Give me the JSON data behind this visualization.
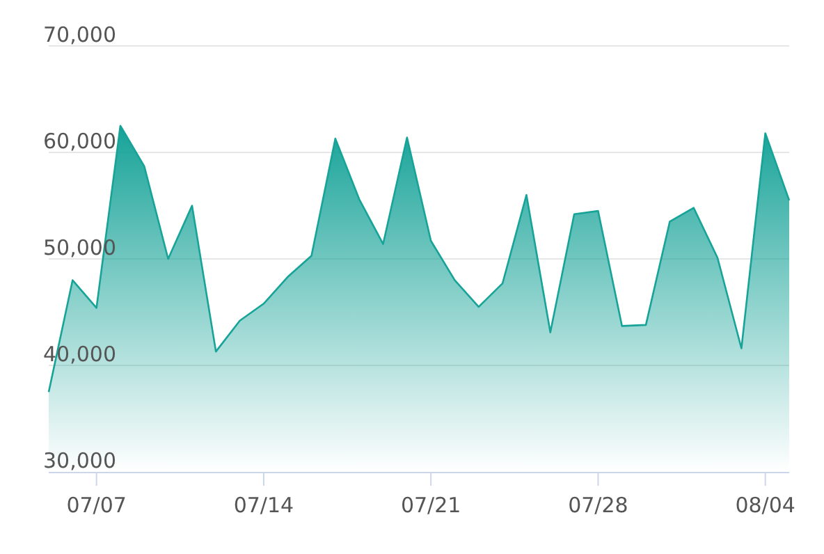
{
  "chart_data": {
    "type": "area",
    "x": [
      "--07-05",
      "--07-06",
      "--07-07",
      "--07-08",
      "--07-09",
      "--07-10",
      "--07-11",
      "--07-12",
      "--07-13",
      "--07-14",
      "--07-15",
      "--07-16",
      "--07-17",
      "--07-18",
      "--07-19",
      "--07-20",
      "--07-21",
      "--07-22",
      "--07-23",
      "--07-24",
      "--07-25",
      "--07-26",
      "--07-27",
      "--07-28",
      "--07-29",
      "--07-30",
      "--07-31",
      "--08-01",
      "--08-02",
      "--08-03",
      "--08-04",
      "--08-05"
    ],
    "series": [
      {
        "color": "#17a398",
        "values": [
          37500,
          48000,
          45400,
          62500,
          58700,
          50000,
          55000,
          41300,
          44200,
          45800,
          48300,
          50300,
          61300,
          55600,
          51400,
          61400,
          51700,
          48000,
          45500,
          47700,
          56000,
          43100,
          54200,
          54500,
          43700,
          43800,
          53500,
          54800,
          50100,
          41600,
          61800,
          55500
        ]
      }
    ],
    "xlim": [
      "--07-05",
      "--08-05"
    ],
    "xticks": [
      {
        "value": "--07-07",
        "label": "07/07"
      },
      {
        "value": "--07-14",
        "label": "07/14"
      },
      {
        "value": "--07-21",
        "label": "07/21"
      },
      {
        "value": "--07-28",
        "label": "07/28"
      },
      {
        "value": "--08-04",
        "label": "08/04"
      }
    ],
    "ylim": [
      30000,
      70000
    ],
    "yticks": [
      {
        "value": 30000,
        "label": "30,000"
      },
      {
        "value": 40000,
        "label": "40,000"
      },
      {
        "value": 50000,
        "label": "50,000"
      },
      {
        "value": 60000,
        "label": "60,000"
      },
      {
        "value": 70000,
        "label": "70,000"
      }
    ],
    "grid": "y"
  }
}
